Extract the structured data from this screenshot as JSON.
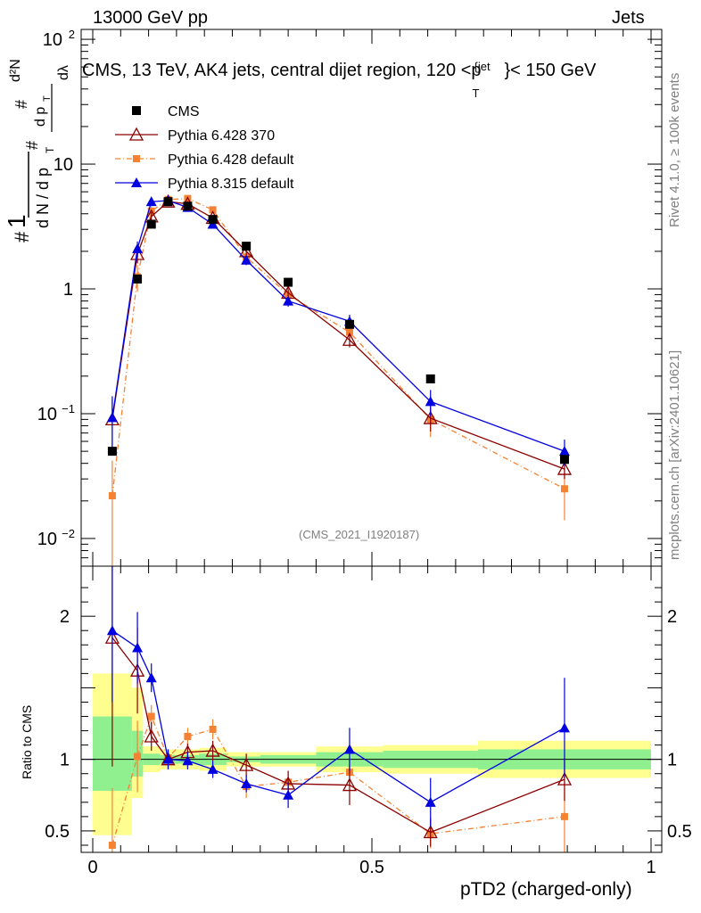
{
  "header": {
    "left": "13000 GeV pp",
    "right": "Jets",
    "title": "CMS, 13 TeV, AK4 jets, central dijet region, 120 <p",
    "title_sup": "{jet",
    "title_sub": "T",
    "title_end": "}< 150 GeV"
  },
  "side": {
    "rivet": "Rivet 4.1.0, ≥ 100k events",
    "mcplots": "mcplots.cern.ch [arXiv:2401.10621]"
  },
  "analysis_id": "(CMS_2021_I1920187)",
  "xlabel": "pTD2 (charged-only)",
  "ratio_label": "Ratio to CMS",
  "colors": {
    "cms": "#000000",
    "py6_370": "#8b0000",
    "py6_default": "#f58232",
    "py8": "#0000e0",
    "band_yellow": "#ffff90",
    "band_green": "#90f090"
  },
  "legend": [
    {
      "name": "CMS",
      "key": "cms"
    },
    {
      "name": "Pythia 6.428 370",
      "key": "py6_370"
    },
    {
      "name": "Pythia 6.428 default",
      "key": "py6_default"
    },
    {
      "name": "Pythia 8.315 default",
      "key": "py8"
    }
  ],
  "chart_data": {
    "type": "scatter",
    "xlim": [
      0,
      1
    ],
    "main_ylim_log": [
      0.006,
      120
    ],
    "ratio_ylim": [
      0.35,
      2.35
    ],
    "main_yticks": [
      {
        "v": 0.01,
        "label": "10",
        "exp": "−2"
      },
      {
        "v": 0.1,
        "label": "10",
        "exp": "−1"
      },
      {
        "v": 1,
        "label": "1",
        "exp": ""
      },
      {
        "v": 10,
        "label": "10",
        "exp": ""
      },
      {
        "v": 100,
        "label": "10",
        "exp": "2"
      }
    ],
    "ratio_yticks": [
      {
        "v": 0.5,
        "label": "0.5"
      },
      {
        "v": 1,
        "label": "1"
      },
      {
        "v": 2,
        "label": "2"
      }
    ],
    "xticks": [
      {
        "v": 0,
        "label": "0"
      },
      {
        "v": 0.5,
        "label": "0.5"
      },
      {
        "v": 1,
        "label": "1"
      }
    ],
    "bins": [
      {
        "lo": 0.0,
        "hi": 0.07,
        "yellow": [
          0.47,
          1.6
        ],
        "green": [
          0.78,
          1.3
        ]
      },
      {
        "lo": 0.07,
        "hi": 0.09,
        "yellow": [
          0.73,
          1.5
        ],
        "green": [
          0.88,
          1.2
        ]
      },
      {
        "lo": 0.09,
        "hi": 0.12,
        "yellow": [
          0.91,
          1.09
        ],
        "green": [
          0.96,
          1.04
        ]
      },
      {
        "lo": 0.12,
        "hi": 0.15,
        "yellow": [
          0.93,
          1.07
        ],
        "green": [
          0.97,
          1.03
        ]
      },
      {
        "lo": 0.15,
        "hi": 0.19,
        "yellow": [
          0.93,
          1.07
        ],
        "green": [
          0.97,
          1.03
        ]
      },
      {
        "lo": 0.19,
        "hi": 0.24,
        "yellow": [
          0.92,
          1.08
        ],
        "green": [
          0.96,
          1.04
        ]
      },
      {
        "lo": 0.24,
        "hi": 0.3,
        "yellow": [
          0.95,
          1.05
        ],
        "green": [
          0.98,
          1.02
        ]
      },
      {
        "lo": 0.3,
        "hi": 0.4,
        "yellow": [
          0.95,
          1.05
        ],
        "green": [
          0.97,
          1.03
        ]
      },
      {
        "lo": 0.4,
        "hi": 0.52,
        "yellow": [
          0.91,
          1.09
        ],
        "green": [
          0.95,
          1.05
        ]
      },
      {
        "lo": 0.52,
        "hi": 0.69,
        "yellow": [
          0.9,
          1.1
        ],
        "green": [
          0.94,
          1.06
        ]
      },
      {
        "lo": 0.69,
        "hi": 1.0,
        "yellow": [
          0.87,
          1.13
        ],
        "green": [
          0.93,
          1.07
        ]
      }
    ],
    "series": [
      {
        "name": "CMS",
        "key": "cms",
        "marker": "square",
        "x": [
          0.035,
          0.08,
          0.105,
          0.135,
          0.17,
          0.215,
          0.275,
          0.35,
          0.46,
          0.605,
          0.845
        ],
        "y": [
          0.05,
          1.2,
          3.3,
          5.0,
          4.6,
          3.6,
          2.2,
          1.13,
          0.52,
          0.19,
          0.043
        ],
        "yerr": [
          0,
          0,
          0,
          0,
          0,
          0,
          0,
          0,
          0,
          0,
          0
        ],
        "ratio": [
          1,
          1,
          1,
          1,
          1,
          1,
          1,
          1,
          1,
          1,
          1
        ],
        "ratio_err": [
          0,
          0,
          0,
          0,
          0,
          0,
          0,
          0,
          0,
          0,
          0
        ]
      },
      {
        "name": "Pythia 6.428 370",
        "key": "py6_370",
        "marker": "open-triangle",
        "x": [
          0.035,
          0.08,
          0.105,
          0.135,
          0.17,
          0.215,
          0.275,
          0.35,
          0.46,
          0.605,
          0.845
        ],
        "y": [
          0.09,
          1.9,
          3.8,
          5.0,
          4.8,
          3.7,
          2.0,
          0.93,
          0.39,
          0.092,
          0.036
        ],
        "yerr": [
          0.04,
          0.3,
          0.3,
          0.3,
          0.25,
          0.2,
          0.15,
          0.08,
          0.05,
          0.02,
          0.006
        ],
        "ratio": [
          1.85,
          1.62,
          1.16,
          1.0,
          1.05,
          1.06,
          0.96,
          0.83,
          0.82,
          0.49,
          0.86
        ],
        "ratio_err": [
          0.9,
          0.3,
          0.1,
          0.07,
          0.06,
          0.07,
          0.08,
          0.09,
          0.14,
          0.1,
          0.15
        ]
      },
      {
        "name": "Pythia 6.428 default",
        "key": "py6_default",
        "marker": "small-square",
        "x": [
          0.035,
          0.08,
          0.105,
          0.135,
          0.17,
          0.215,
          0.275,
          0.35,
          0.46,
          0.605,
          0.845
        ],
        "y": [
          0.022,
          1.25,
          4.2,
          5.2,
          5.3,
          4.3,
          1.8,
          0.9,
          0.45,
          0.09,
          0.025
        ],
        "yerr": [
          0.02,
          0.3,
          0.35,
          0.3,
          0.25,
          0.25,
          0.15,
          0.08,
          0.05,
          0.025,
          0.011
        ],
        "ratio": [
          0.4,
          1.02,
          1.3,
          1.01,
          1.16,
          1.21,
          0.81,
          0.84,
          0.91,
          0.48,
          0.6
        ],
        "ratio_err": [
          0.4,
          0.25,
          0.08,
          0.06,
          0.06,
          0.07,
          0.08,
          0.08,
          0.1,
          0.1,
          0.25
        ]
      },
      {
        "name": "Pythia 8.315 default",
        "key": "py8",
        "marker": "triangle",
        "x": [
          0.035,
          0.08,
          0.105,
          0.135,
          0.17,
          0.215,
          0.275,
          0.35,
          0.46,
          0.605,
          0.845
        ],
        "y": [
          0.093,
          2.1,
          5.0,
          5.1,
          4.5,
          3.3,
          1.7,
          0.8,
          0.55,
          0.125,
          0.05
        ],
        "yerr": [
          0.045,
          0.3,
          0.4,
          0.3,
          0.25,
          0.2,
          0.15,
          0.08,
          0.07,
          0.03,
          0.012
        ],
        "ratio": [
          1.9,
          1.78,
          1.57,
          1.0,
          0.99,
          0.93,
          0.83,
          0.75,
          1.07,
          0.7,
          1.22
        ],
        "ratio_err": [
          0.5,
          0.25,
          0.1,
          0.07,
          0.06,
          0.06,
          0.06,
          0.09,
          0.15,
          0.17,
          0.35
        ]
      }
    ]
  }
}
